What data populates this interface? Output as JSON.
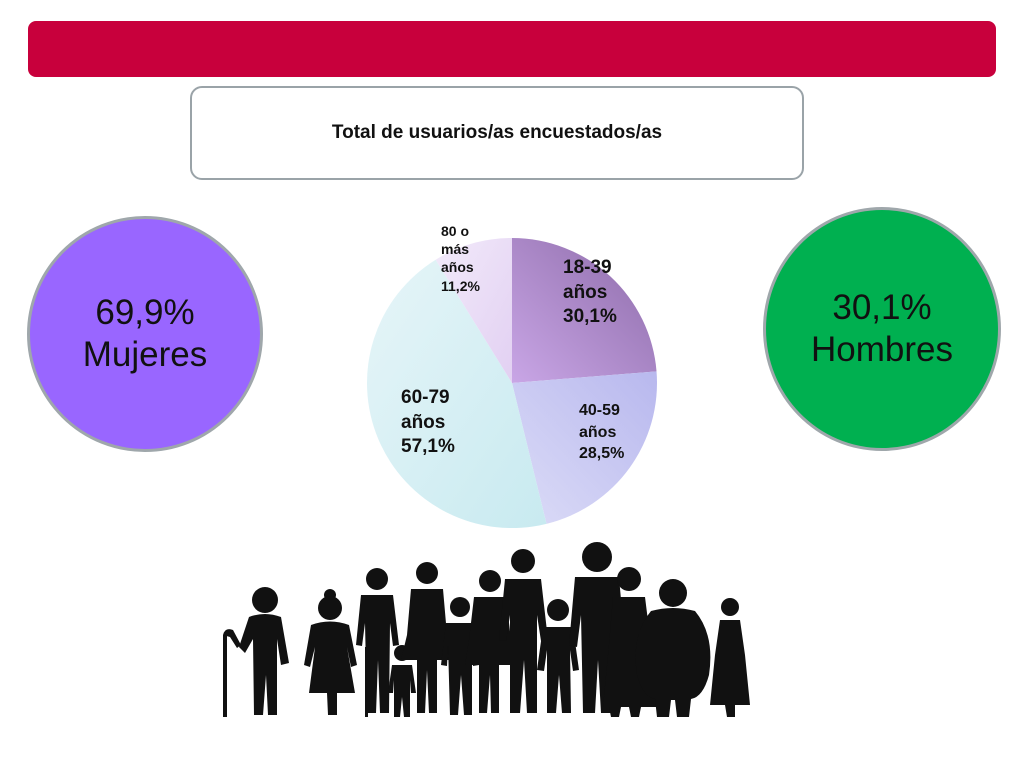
{
  "header": {
    "title": "Total de usuarios/as encuestados/as"
  },
  "gender": {
    "women": {
      "percent": "69,9%",
      "label": "Mujeres",
      "color": "#9966ff"
    },
    "men": {
      "percent": "30,1%",
      "label": "Hombres",
      "color": "#00b050"
    }
  },
  "colors": {
    "banner": "#c8003c"
  },
  "chart_data": {
    "type": "pie",
    "title": "",
    "slices": [
      {
        "line1": "18-39",
        "line2": "años",
        "pct_text": "30,1%",
        "value": 30.1,
        "color_light": "#c9a6e6",
        "color_dark": "#8c6aa8"
      },
      {
        "line1": "40-59",
        "line2": "años",
        "pct_text": "28,5%",
        "value": 28.5,
        "color_light": "#dcdcf7",
        "color_dark": "#b8b8ee"
      },
      {
        "line1": "60-79",
        "line2": "años",
        "pct_text": "57,1%",
        "value": 57.1,
        "color_light": "#c8eaf0",
        "color_dark": "#e6f5f8"
      },
      {
        "line1": "80 o",
        "line2": "más",
        "line3": "años",
        "pct_text": "11,2%",
        "value": 11.2,
        "color_light": "#e2d0f2",
        "color_dark": "#f2eafa"
      }
    ]
  },
  "illustration": {
    "icon": "people-group-icon"
  }
}
